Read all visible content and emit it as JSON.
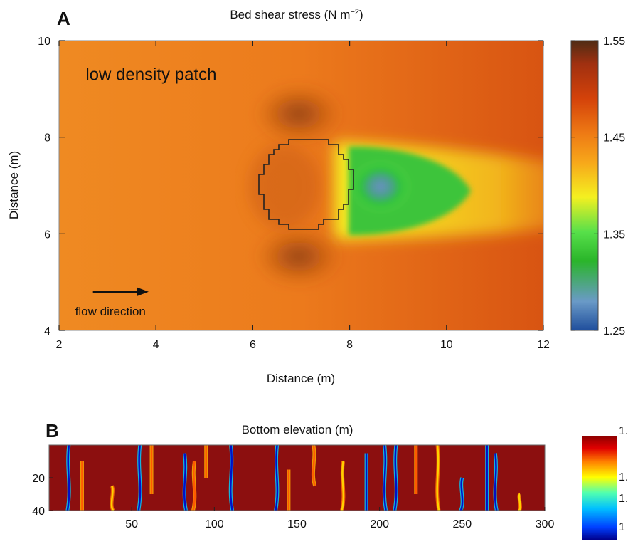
{
  "chart_data": [
    {
      "panel_label": "A",
      "type": "heatmap",
      "title": "Bed shear stress (N m",
      "title_superscript": "−2",
      "title_close": ")",
      "xlabel": "Distance (m)",
      "ylabel": "Distance (m)",
      "xlim": [
        2,
        12
      ],
      "ylim": [
        4,
        10
      ],
      "xticks": [
        "2",
        "4",
        "6",
        "8",
        "10",
        "12"
      ],
      "yticks": [
        "4",
        "6",
        "8",
        "10"
      ],
      "colorbar": {
        "range": [
          1.25,
          1.55
        ],
        "ticks": [
          "1.25",
          "1.35",
          "1.45",
          "1.55"
        ],
        "colors": [
          "#1f4e9c",
          "#6a9ac7",
          "#2ab52a",
          "#57e04a",
          "#f4f020",
          "#f7a71a",
          "#ee7a14",
          "#d4420a",
          "#a03010",
          "#4f2c14"
        ]
      },
      "background_value": 1.49,
      "annotations": [
        {
          "text": "low density patch",
          "x": 3.9,
          "y": 9.3
        },
        {
          "text": "flow direction",
          "x": 2.7,
          "y": 4.4
        }
      ],
      "arrow": {
        "x0": 2.7,
        "x1": 3.85,
        "y": 4.8,
        "direction": "flow"
      },
      "patch_outline": {
        "center": [
          7.1,
          7.05
        ],
        "radius": 0.95,
        "shape": "stepped-circle"
      },
      "wake": {
        "min_value_at": [
          8.6,
          7.05
        ],
        "min_value": 1.3,
        "extends_to_x": 12
      }
    },
    {
      "panel_label": "B",
      "type": "heatmap",
      "title": "Bottom elevation (m)",
      "xlim": [
        0,
        300
      ],
      "ylim": [
        40,
        0
      ],
      "xticks": [
        "50",
        "100",
        "150",
        "200",
        "250",
        "300"
      ],
      "yticks": [
        "20",
        "40"
      ],
      "background_color": "#8c0f0f",
      "colorbar": {
        "ticks": [
          "1.",
          "1.",
          "1.",
          "1"
        ],
        "colors": [
          "#00008c",
          "#0040ff",
          "#00c0ff",
          "#50ffb0",
          "#ffff00",
          "#ff8000",
          "#e00000",
          "#8c0000"
        ]
      },
      "streaks": [
        {
          "x": 12,
          "y0": 0,
          "y1": 40,
          "tone": "blue"
        },
        {
          "x": 20,
          "y0": 10,
          "y1": 40,
          "tone": "orange"
        },
        {
          "x": 38,
          "y0": 25,
          "y1": 40,
          "tone": "yellow"
        },
        {
          "x": 55,
          "y0": 0,
          "y1": 40,
          "tone": "blue"
        },
        {
          "x": 62,
          "y0": 0,
          "y1": 30,
          "tone": "orange"
        },
        {
          "x": 82,
          "y0": 5,
          "y1": 40,
          "tone": "blue"
        },
        {
          "x": 88,
          "y0": 10,
          "y1": 40,
          "tone": "orange"
        },
        {
          "x": 95,
          "y0": 0,
          "y1": 20,
          "tone": "orange"
        },
        {
          "x": 110,
          "y0": 0,
          "y1": 40,
          "tone": "blue"
        },
        {
          "x": 138,
          "y0": 0,
          "y1": 40,
          "tone": "blue"
        },
        {
          "x": 145,
          "y0": 15,
          "y1": 40,
          "tone": "orange"
        },
        {
          "x": 160,
          "y0": 0,
          "y1": 25,
          "tone": "orange"
        },
        {
          "x": 178,
          "y0": 10,
          "y1": 40,
          "tone": "yellow"
        },
        {
          "x": 192,
          "y0": 5,
          "y1": 40,
          "tone": "blue"
        },
        {
          "x": 203,
          "y0": 0,
          "y1": 40,
          "tone": "blue"
        },
        {
          "x": 210,
          "y0": 0,
          "y1": 40,
          "tone": "blue"
        },
        {
          "x": 222,
          "y0": 0,
          "y1": 30,
          "tone": "orange"
        },
        {
          "x": 235,
          "y0": 0,
          "y1": 40,
          "tone": "yellow"
        },
        {
          "x": 250,
          "y0": 20,
          "y1": 40,
          "tone": "blue"
        },
        {
          "x": 265,
          "y0": 0,
          "y1": 40,
          "tone": "blue"
        },
        {
          "x": 270,
          "y0": 5,
          "y1": 40,
          "tone": "blue"
        },
        {
          "x": 285,
          "y0": 30,
          "y1": 40,
          "tone": "yellow"
        }
      ]
    }
  ]
}
